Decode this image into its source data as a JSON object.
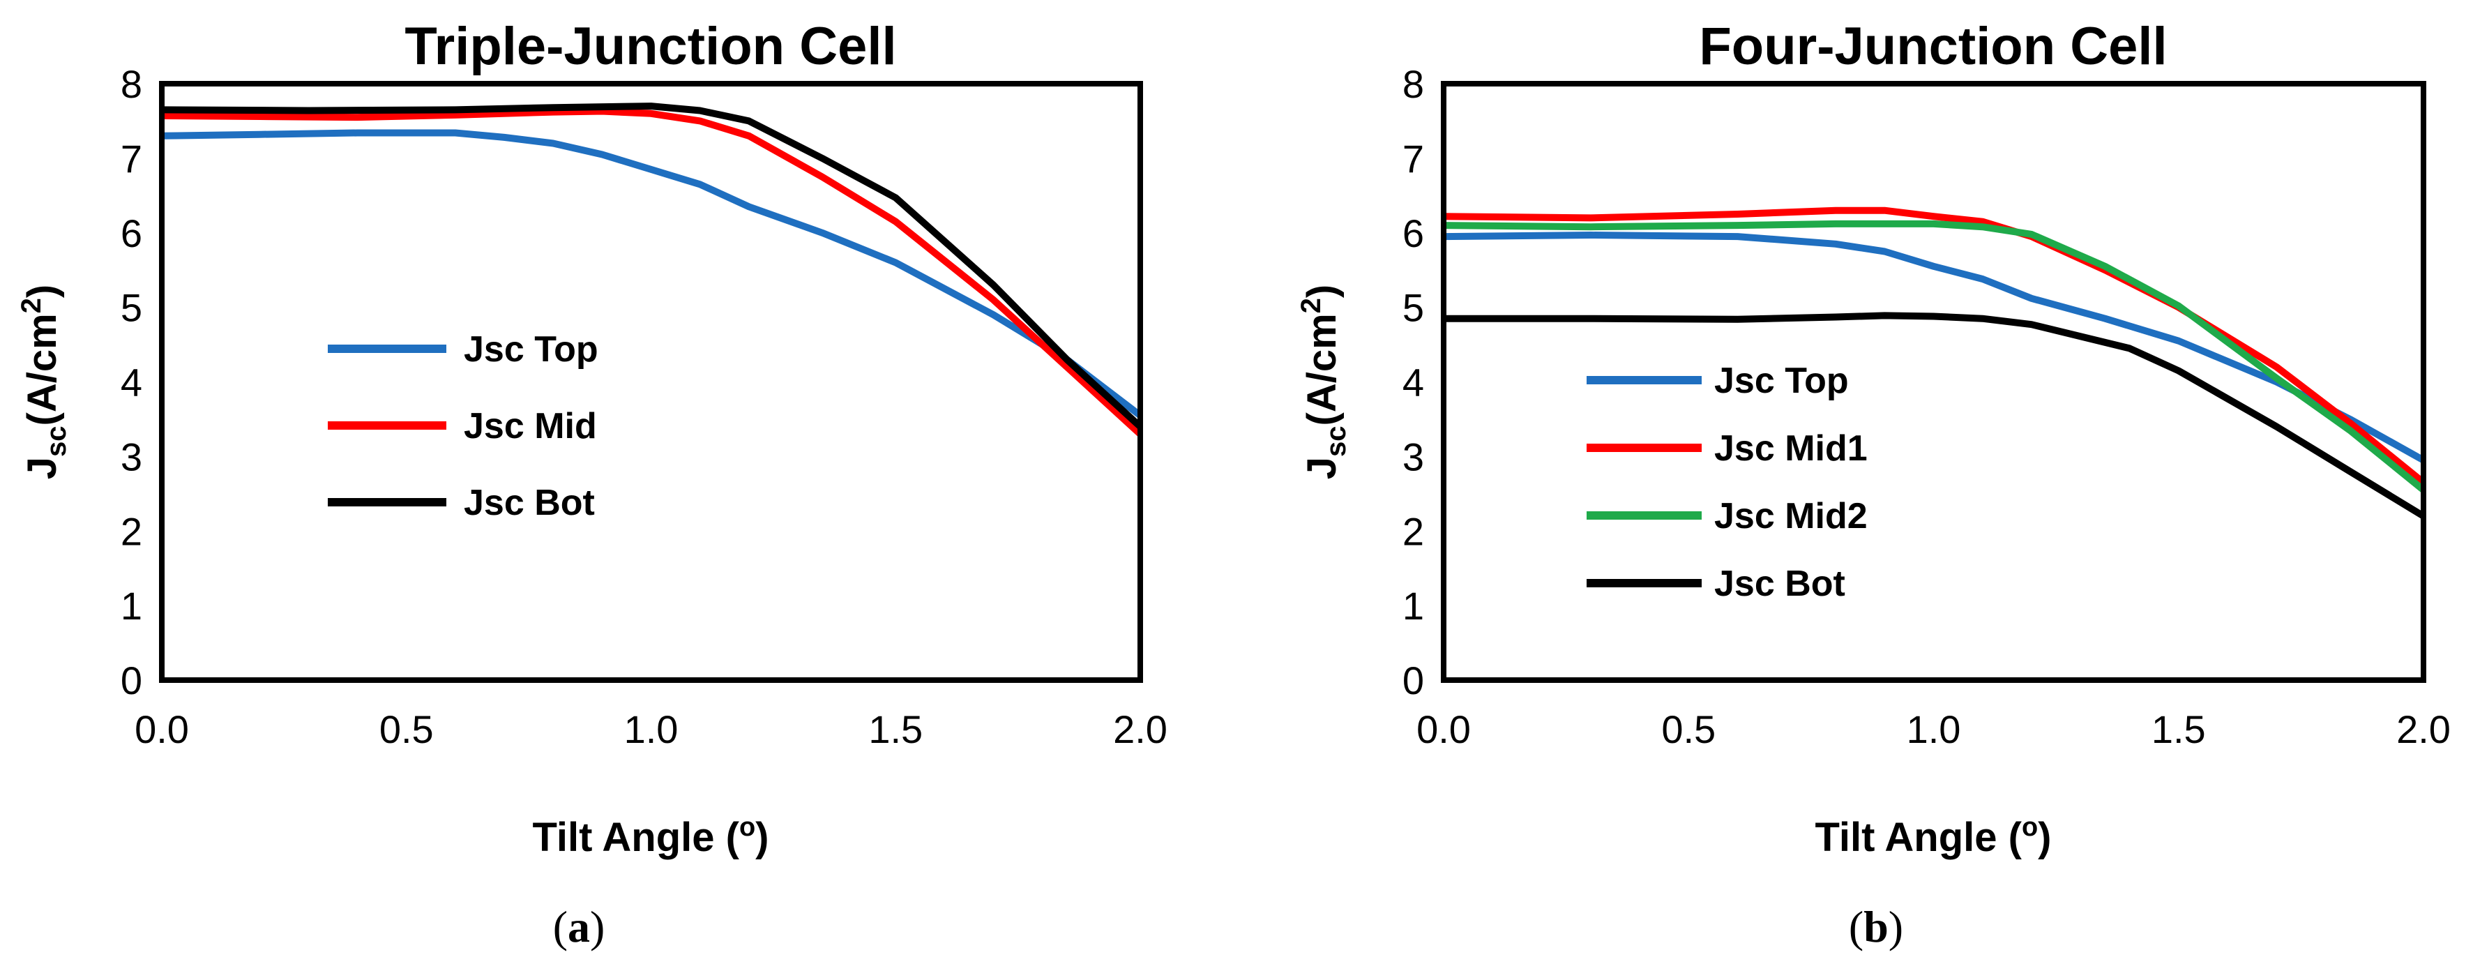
{
  "chart_data": [
    {
      "type": "line",
      "title": "Triple-Junction Cell",
      "xlabel": "Tilt Angle (o)",
      "ylabel": "Jsc (A/cm2)",
      "xlim": [
        0,
        2.0
      ],
      "ylim": [
        0,
        8
      ],
      "xticks": [
        "0.0",
        "0.5",
        "1.0",
        "1.5",
        "2.0"
      ],
      "yticks": [
        "0",
        "1",
        "2",
        "3",
        "4",
        "5",
        "6",
        "7",
        "8"
      ],
      "legend_position": "center-left",
      "caption": {
        "open": "(",
        "letter": "a",
        "close": ")"
      },
      "series": [
        {
          "name": "Jsc Top",
          "color": "#1f6fc0",
          "points": [
            [
              0,
              7.3
            ],
            [
              0.2,
              7.32
            ],
            [
              0.4,
              7.34
            ],
            [
              0.6,
              7.34
            ],
            [
              0.7,
              7.28
            ],
            [
              0.8,
              7.2
            ],
            [
              0.9,
              7.05
            ],
            [
              1.0,
              6.85
            ],
            [
              1.1,
              6.65
            ],
            [
              1.2,
              6.35
            ],
            [
              1.35,
              6.0
            ],
            [
              1.5,
              5.6
            ],
            [
              1.7,
              4.9
            ],
            [
              1.85,
              4.3
            ],
            [
              2.0,
              3.55
            ]
          ]
        },
        {
          "name": "Jsc Mid",
          "color": "#ff0000",
          "points": [
            [
              0,
              7.57
            ],
            [
              0.2,
              7.56
            ],
            [
              0.4,
              7.55
            ],
            [
              0.6,
              7.58
            ],
            [
              0.8,
              7.62
            ],
            [
              0.9,
              7.63
            ],
            [
              1.0,
              7.6
            ],
            [
              1.1,
              7.5
            ],
            [
              1.2,
              7.3
            ],
            [
              1.35,
              6.75
            ],
            [
              1.5,
              6.15
            ],
            [
              1.7,
              5.1
            ],
            [
              1.85,
              4.2
            ],
            [
              2.0,
              3.3
            ]
          ]
        },
        {
          "name": "Jsc Bot",
          "color": "#000000",
          "points": [
            [
              0,
              7.65
            ],
            [
              0.3,
              7.64
            ],
            [
              0.6,
              7.65
            ],
            [
              0.8,
              7.68
            ],
            [
              1.0,
              7.7
            ],
            [
              1.1,
              7.64
            ],
            [
              1.2,
              7.5
            ],
            [
              1.35,
              7.0
            ],
            [
              1.5,
              6.47
            ],
            [
              1.7,
              5.3
            ],
            [
              1.85,
              4.3
            ],
            [
              2.0,
              3.4
            ]
          ]
        }
      ]
    },
    {
      "type": "line",
      "title": "Four-Junction Cell",
      "xlabel": "Tilt Angle (o)",
      "ylabel": "Jsc (A/cm2)",
      "xlim": [
        0,
        2.0
      ],
      "ylim": [
        0,
        8
      ],
      "xticks": [
        "0.0",
        "0.5",
        "1.0",
        "1.5",
        "2.0"
      ],
      "yticks": [
        "0",
        "1",
        "2",
        "3",
        "4",
        "5",
        "6",
        "7",
        "8"
      ],
      "legend_position": "lower-left",
      "caption": {
        "open": "(",
        "letter": "b",
        "close": ")"
      },
      "series": [
        {
          "name": "Jsc Top",
          "color": "#1f6fc0",
          "points": [
            [
              0,
              5.95
            ],
            [
              0.3,
              5.97
            ],
            [
              0.6,
              5.95
            ],
            [
              0.8,
              5.85
            ],
            [
              0.9,
              5.75
            ],
            [
              1.0,
              5.55
            ],
            [
              1.1,
              5.38
            ],
            [
              1.2,
              5.12
            ],
            [
              1.35,
              4.85
            ],
            [
              1.5,
              4.55
            ],
            [
              1.7,
              4.0
            ],
            [
              1.85,
              3.5
            ],
            [
              2.0,
              2.95
            ]
          ]
        },
        {
          "name": "Jsc Mid1",
          "color": "#ff0000",
          "points": [
            [
              0,
              6.22
            ],
            [
              0.3,
              6.2
            ],
            [
              0.6,
              6.25
            ],
            [
              0.8,
              6.3
            ],
            [
              0.9,
              6.3
            ],
            [
              1.0,
              6.22
            ],
            [
              1.1,
              6.15
            ],
            [
              1.2,
              5.95
            ],
            [
              1.35,
              5.5
            ],
            [
              1.5,
              5.0
            ],
            [
              1.7,
              4.2
            ],
            [
              1.85,
              3.45
            ],
            [
              2.0,
              2.65
            ]
          ]
        },
        {
          "name": "Jsc Mid2",
          "color": "#1faa4a",
          "points": [
            [
              0,
              6.1
            ],
            [
              0.3,
              6.08
            ],
            [
              0.6,
              6.1
            ],
            [
              0.8,
              6.12
            ],
            [
              1.0,
              6.12
            ],
            [
              1.1,
              6.08
            ],
            [
              1.2,
              5.98
            ],
            [
              1.35,
              5.55
            ],
            [
              1.5,
              5.02
            ],
            [
              1.7,
              4.05
            ],
            [
              1.85,
              3.35
            ],
            [
              2.0,
              2.55
            ]
          ]
        },
        {
          "name": "Jsc Bot",
          "color": "#000000",
          "points": [
            [
              0,
              4.85
            ],
            [
              0.3,
              4.85
            ],
            [
              0.6,
              4.84
            ],
            [
              0.8,
              4.87
            ],
            [
              0.9,
              4.89
            ],
            [
              1.0,
              4.88
            ],
            [
              1.1,
              4.85
            ],
            [
              1.2,
              4.77
            ],
            [
              1.4,
              4.45
            ],
            [
              1.5,
              4.15
            ],
            [
              1.7,
              3.4
            ],
            [
              1.85,
              2.8
            ],
            [
              2.0,
              2.2
            ]
          ]
        }
      ]
    }
  ]
}
